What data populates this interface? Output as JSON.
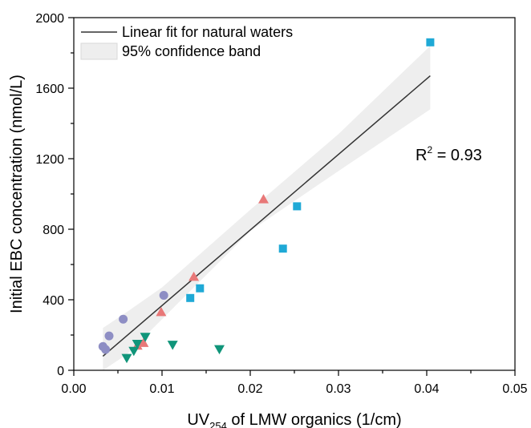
{
  "chart_data": {
    "type": "scatter",
    "xlabel": {
      "prefix": "UV",
      "subscript": "254",
      "suffix": " of LMW organics (1/cm)"
    },
    "ylabel": "Initial EBC concentration (nmol/L)",
    "xlim": [
      0,
      0.05
    ],
    "ylim": [
      0,
      2000
    ],
    "x_ticks": [
      0,
      0.01,
      0.02,
      0.03,
      0.04,
      0.05
    ],
    "x_tick_labels": [
      "0.00",
      "0.01",
      "0.02",
      "0.03",
      "0.04",
      "0.05"
    ],
    "y_ticks": [
      0,
      400,
      800,
      1200,
      1600,
      2000
    ],
    "y_tick_labels": [
      "0",
      "400",
      "800",
      "1200",
      "1600",
      "2000"
    ],
    "grid": false,
    "legend_position": "top-left",
    "legend": [
      {
        "label": "Linear fit for natural waters",
        "kind": "line"
      },
      {
        "label": "95% confidence band",
        "kind": "band"
      }
    ],
    "annotation": {
      "base": "R",
      "sup": "2",
      "rest": " = 0.93"
    },
    "fit": {
      "x_range": [
        0.0033,
        0.0404
      ],
      "line": [
        [
          0.0033,
          80
        ],
        [
          0.0404,
          1670
        ]
      ],
      "band_upper": [
        [
          0.0033,
          240
        ],
        [
          0.006,
          330
        ],
        [
          0.01,
          470
        ],
        [
          0.02,
          910
        ],
        [
          0.03,
          1340
        ],
        [
          0.0404,
          1840
        ]
      ],
      "band_lower": [
        [
          0.0033,
          -50
        ],
        [
          0.006,
          90
        ],
        [
          0.01,
          290
        ],
        [
          0.02,
          790
        ],
        [
          0.03,
          1130
        ],
        [
          0.0404,
          1480
        ]
      ],
      "line_color": "#333333",
      "band_color": "#eeeeee"
    },
    "series": [
      {
        "marker": "circle",
        "color": "#8e8ec4",
        "points": [
          [
            0.0033,
            135
          ],
          [
            0.0036,
            118
          ],
          [
            0.004,
            195
          ],
          [
            0.0056,
            290
          ],
          [
            0.0102,
            425
          ]
        ]
      },
      {
        "marker": "triangle-up",
        "color": "#e87878",
        "points": [
          [
            0.0072,
            140
          ],
          [
            0.0079,
            155
          ],
          [
            0.0099,
            330
          ],
          [
            0.0136,
            530
          ],
          [
            0.0215,
            970
          ]
        ]
      },
      {
        "marker": "square",
        "color": "#1fa9d6",
        "points": [
          [
            0.0132,
            410
          ],
          [
            0.0143,
            465
          ],
          [
            0.0237,
            690
          ],
          [
            0.0253,
            930
          ],
          [
            0.0404,
            1860
          ]
        ]
      },
      {
        "marker": "triangle-down",
        "color": "#10957a",
        "points": [
          [
            0.006,
            70
          ],
          [
            0.0068,
            110
          ],
          [
            0.0072,
            150
          ],
          [
            0.0081,
            190
          ],
          [
            0.0112,
            145
          ],
          [
            0.0165,
            120
          ]
        ]
      }
    ]
  }
}
